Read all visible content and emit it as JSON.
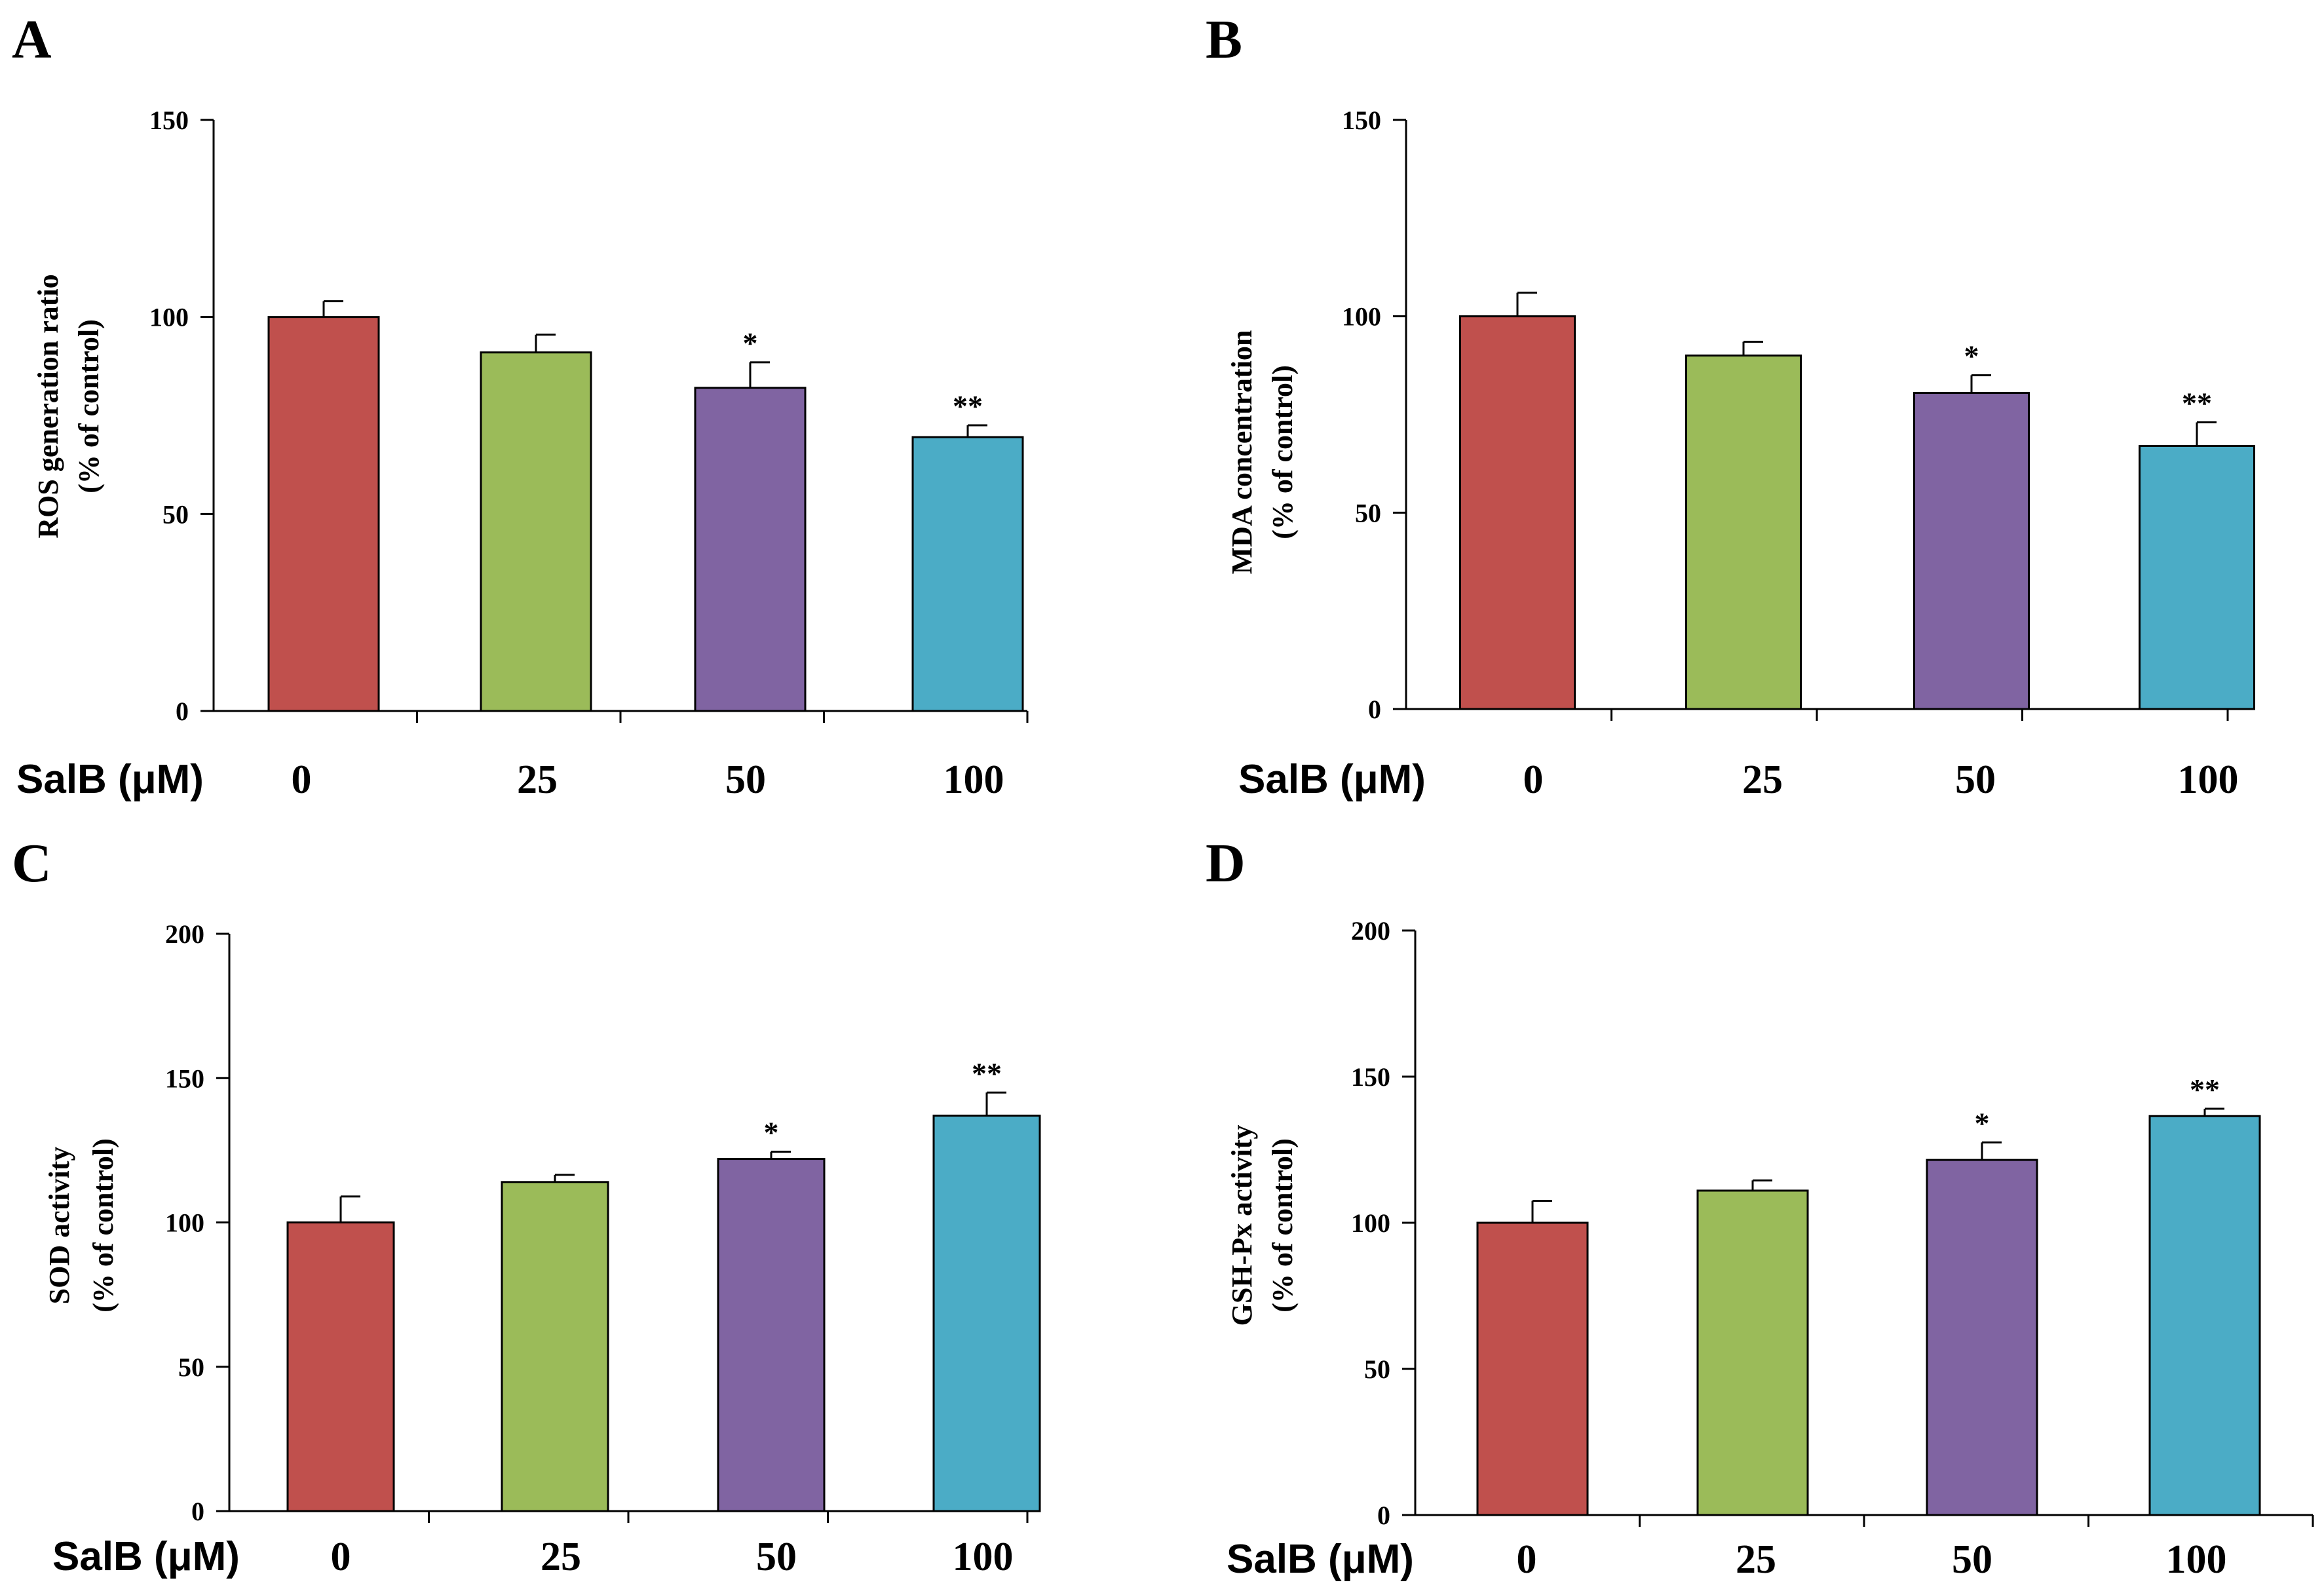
{
  "colors": {
    "bar_fills": [
      "#c0504d",
      "#9bbb59",
      "#8064a2",
      "#4bacc6"
    ],
    "outline": "#000000"
  },
  "chart_data": [
    {
      "type": "bar",
      "panel": "A",
      "title": "",
      "xlabel": "SalB (μM)",
      "ylabel": "ROS generation ratio",
      "ylabel2": "(% of control)",
      "categories": [
        "0",
        "25",
        "50",
        "100"
      ],
      "values": [
        100,
        91,
        82,
        69.5
      ],
      "errors": [
        4,
        4.5,
        6.5,
        3
      ],
      "significance": [
        "",
        "",
        "*",
        "**"
      ],
      "ylim": [
        0,
        150
      ],
      "yticks": [
        0,
        50,
        100,
        150
      ],
      "grid": false
    },
    {
      "type": "bar",
      "panel": "B",
      "title": "",
      "xlabel": "SalB (μM)",
      "ylabel": "MDA concentration",
      "ylabel2": "(% of control)",
      "categories": [
        "0",
        "25",
        "50",
        "100"
      ],
      "values": [
        100,
        90,
        80.5,
        67
      ],
      "errors": [
        6,
        3.5,
        4.5,
        6
      ],
      "significance": [
        "",
        "",
        "*",
        "**"
      ],
      "ylim": [
        0,
        150
      ],
      "yticks": [
        0,
        50,
        100,
        150
      ],
      "grid": false
    },
    {
      "type": "bar",
      "panel": "C",
      "title": "",
      "xlabel": "SalB (μM)",
      "ylabel": "SOD activity",
      "ylabel2": "(% of control)",
      "categories": [
        "0",
        "25",
        "50",
        "100"
      ],
      "values": [
        100,
        114,
        122,
        137
      ],
      "errors": [
        9,
        2.5,
        2.5,
        8
      ],
      "significance": [
        "",
        "",
        "*",
        "**"
      ],
      "ylim": [
        0,
        200
      ],
      "yticks": [
        0,
        50,
        100,
        150,
        200
      ],
      "grid": false
    },
    {
      "type": "bar",
      "panel": "D",
      "title": "",
      "xlabel": "SalB (μM)",
      "ylabel": "GSH-Px activity",
      "ylabel2": "(% of control)",
      "categories": [
        "0",
        "25",
        "50",
        "100"
      ],
      "values": [
        100,
        111,
        121.5,
        136.5
      ],
      "errors": [
        7.5,
        3.5,
        6,
        2.5
      ],
      "significance": [
        "",
        "",
        "*",
        "**"
      ],
      "ylim": [
        0,
        200
      ],
      "yticks": [
        0,
        50,
        100,
        150,
        200
      ],
      "grid": false
    }
  ]
}
